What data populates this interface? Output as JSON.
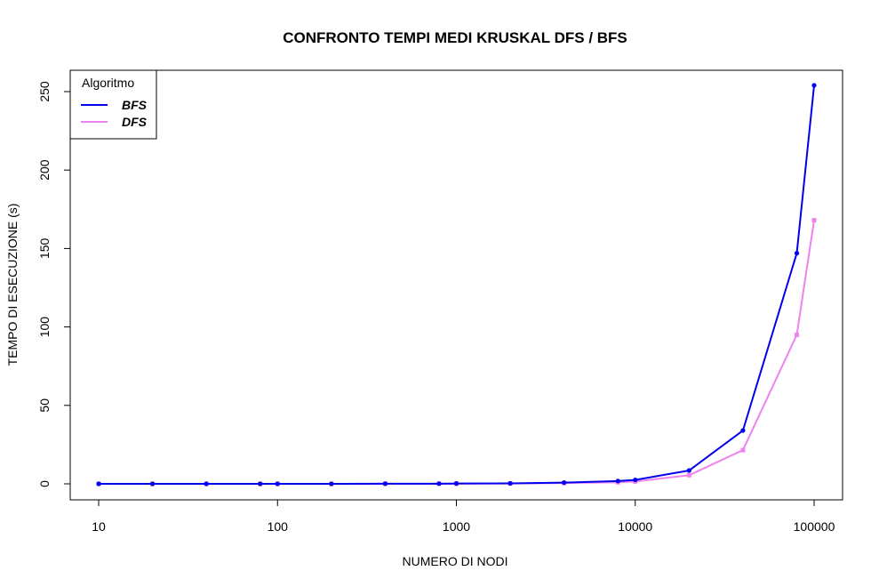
{
  "chart_data": {
    "type": "line",
    "title": "CONFRONTO TEMPI MEDI KRUSKAL DFS / BFS",
    "xlabel": "NUMERO DI NODI",
    "ylabel": "TEMPO DI ESECUZIONE (s)",
    "x_scale": "log",
    "xlim": [
      10,
      100000
    ],
    "ylim": [
      0,
      250
    ],
    "x_ticks": [
      10,
      100,
      1000,
      10000,
      100000
    ],
    "x_tick_labels": [
      "10",
      "100",
      "1000",
      "10000",
      "100000"
    ],
    "y_ticks": [
      0,
      50,
      100,
      150,
      200,
      250
    ],
    "y_tick_labels": [
      "0",
      "50",
      "100",
      "150",
      "200",
      "250"
    ],
    "grid": false,
    "legend": {
      "title": "Algoritmo",
      "position": "top-left"
    },
    "x": [
      10,
      20,
      40,
      80,
      100,
      200,
      400,
      800,
      1000,
      2000,
      4000,
      8000,
      10000,
      20000,
      40000,
      80000,
      100000
    ],
    "series": [
      {
        "name": "BFS",
        "color": "#0000ee",
        "marker": "circle",
        "values": [
          0,
          0,
          0,
          0,
          0,
          0,
          0.1,
          0.1,
          0.2,
          0.3,
          0.8,
          1.8,
          2.5,
          8.5,
          34,
          147,
          254
        ]
      },
      {
        "name": "DFS",
        "color": "#ee82ee",
        "marker": "square",
        "values": [
          0,
          0,
          0,
          0,
          0,
          0,
          0.1,
          0.1,
          0.1,
          0.2,
          0.5,
          1.0,
          1.5,
          5.5,
          21.5,
          95,
          168
        ]
      }
    ]
  }
}
